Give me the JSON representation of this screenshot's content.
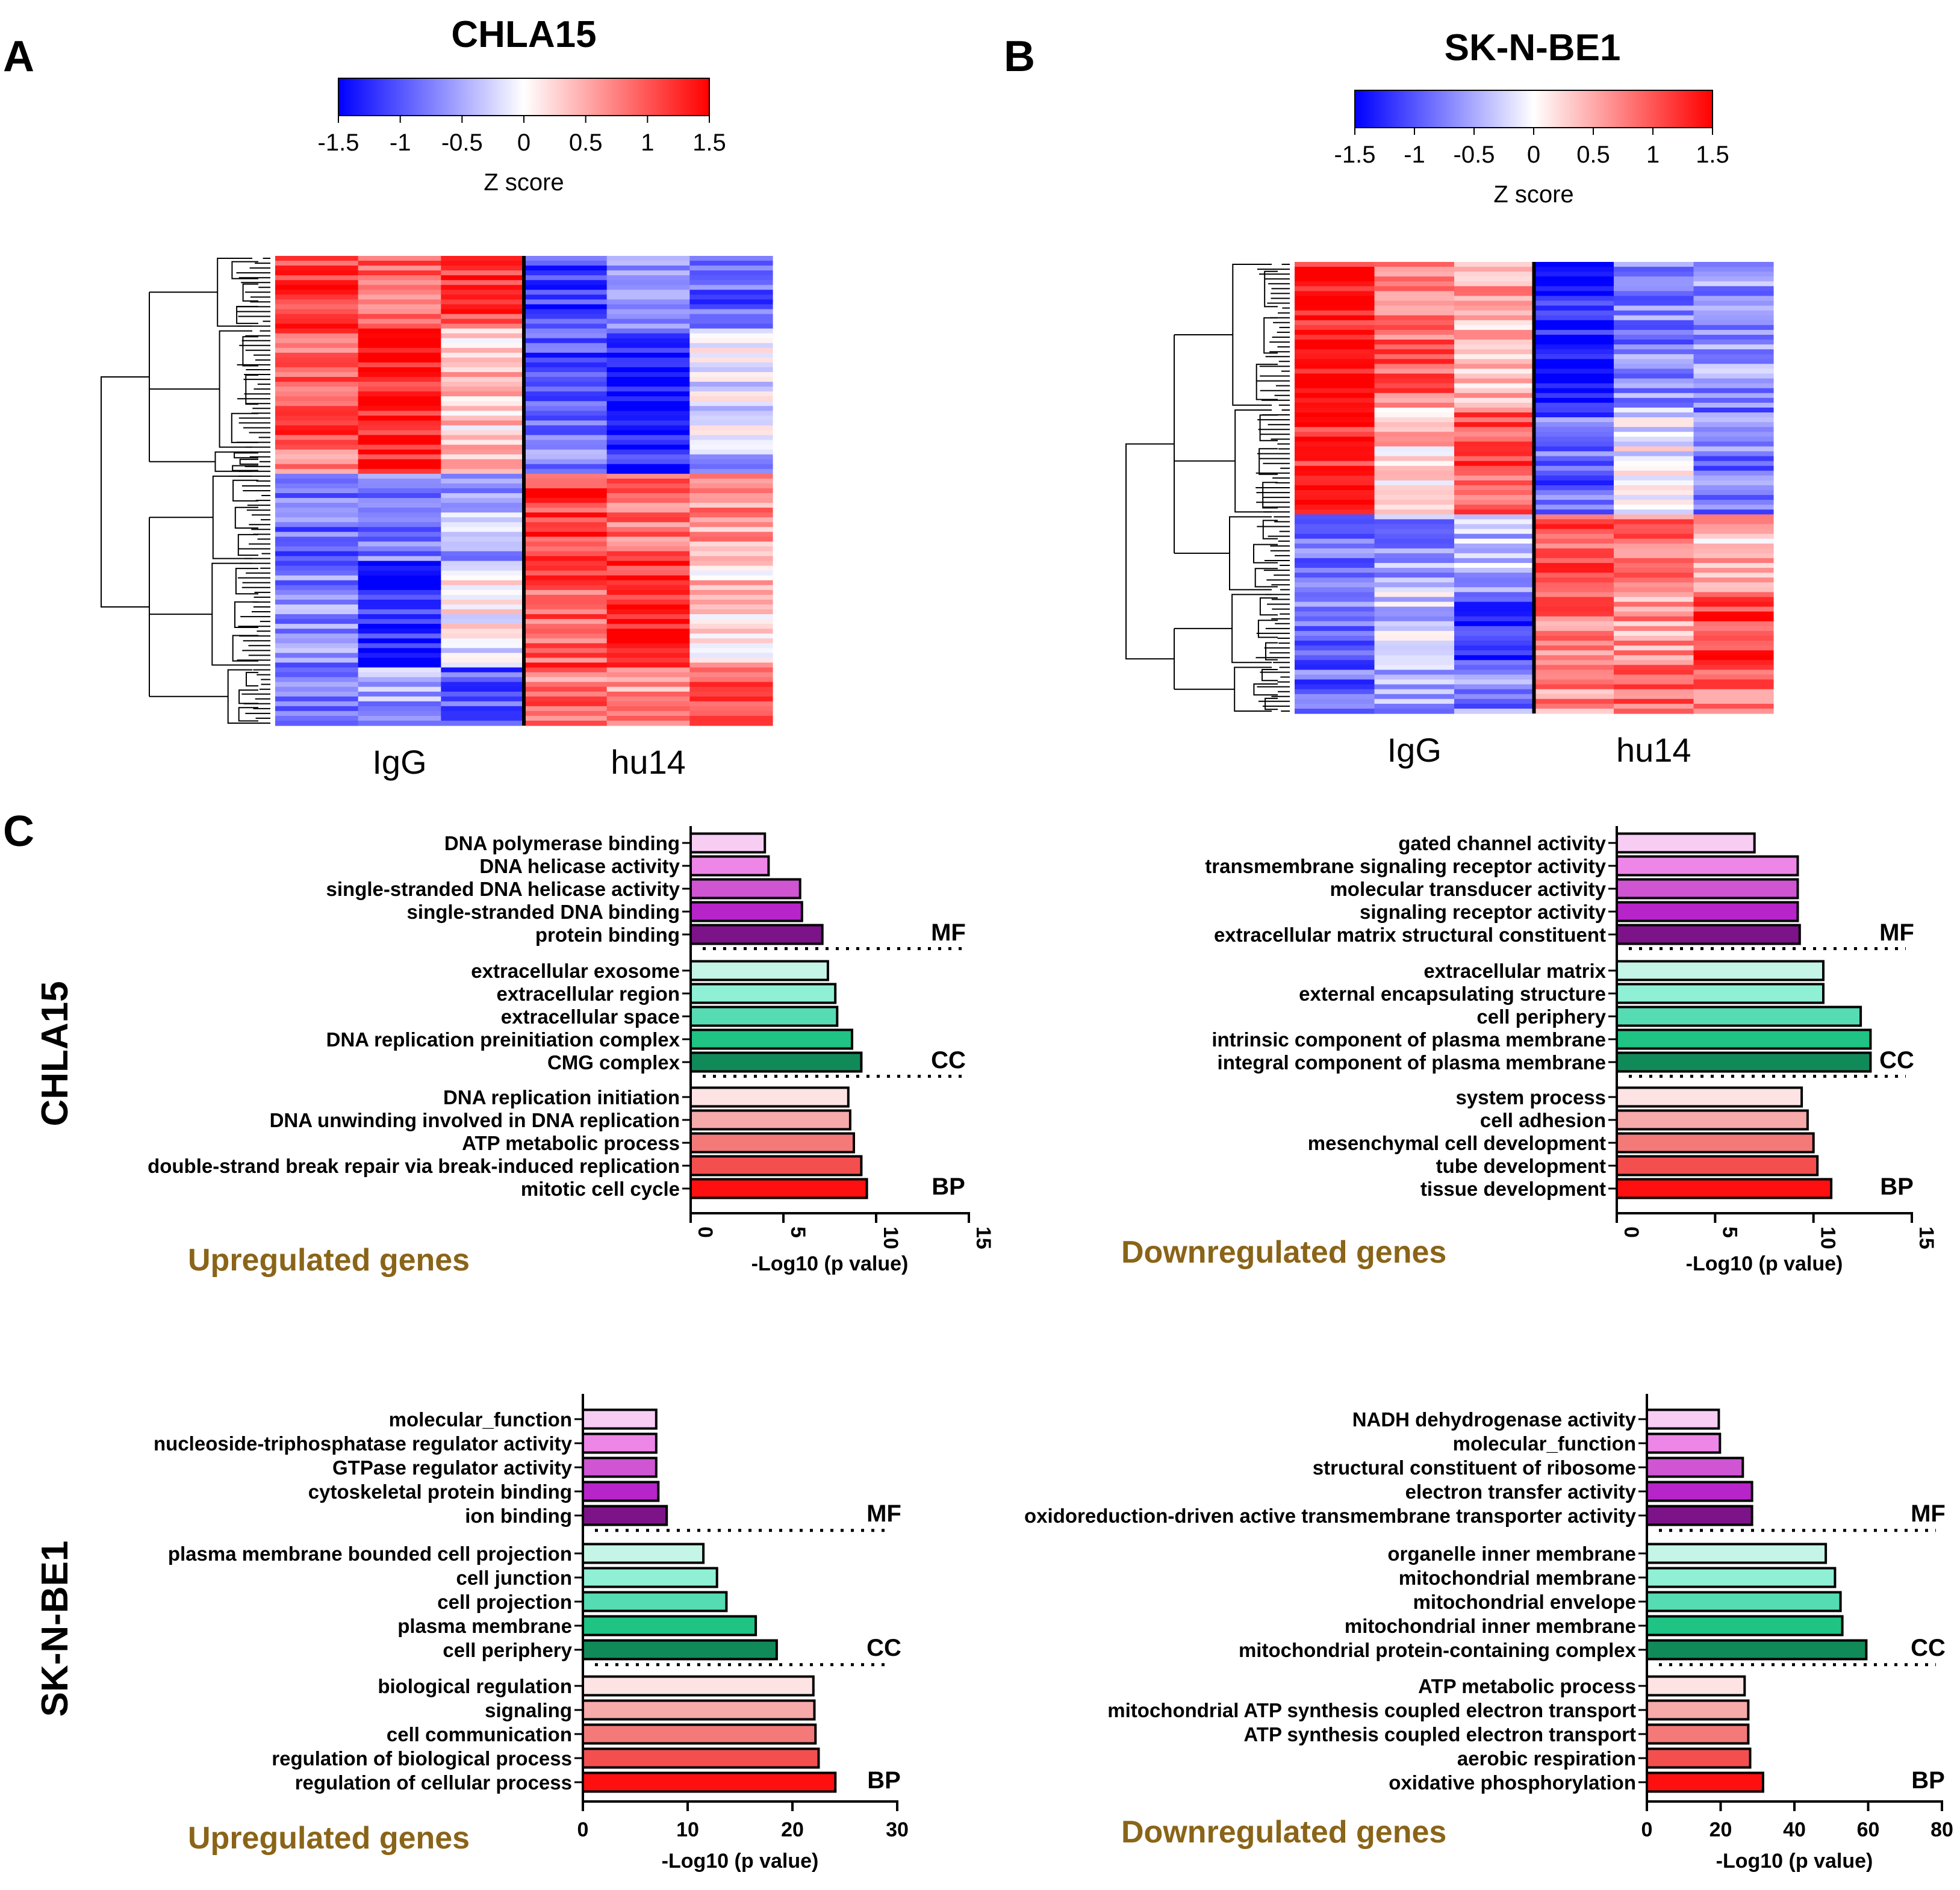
{
  "figure": {
    "panel_labels": {
      "a": "A",
      "b": "B",
      "c": "C"
    },
    "row_labels": [
      "CHLA15",
      "SK-N-BE1"
    ]
  },
  "colors": {
    "low": "#0000ff",
    "mid": "#ffffff",
    "high": "#ff0000",
    "caption": "#8a6418",
    "MF": [
      "#f8cdf3",
      "#ee86e8",
      "#cf55d2",
      "#b724c9",
      "#7d1388"
    ],
    "CC": [
      "#c4f5e6",
      "#8ff0d5",
      "#55dcb3",
      "#1fc384",
      "#118a59"
    ],
    "BP": [
      "#fde3e3",
      "#f6aaaa",
      "#f47a7a",
      "#f44f4f",
      "#ff1010"
    ]
  },
  "chart_data": [
    {
      "type": "heatmap",
      "title": "CHLA15",
      "colorbar": {
        "label": "Z score",
        "ticks": [
          "-1.5",
          "-1",
          "-0.5",
          "0",
          "0.5",
          "1",
          "1.5"
        ],
        "range": [
          -1.5,
          1.5
        ]
      },
      "groups": [
        "IgG",
        "hu14"
      ],
      "columns_per_group": 3,
      "blocks": [
        {
          "rows": 15,
          "pattern": [
            1.1,
            0.9,
            1.2,
            -1.2,
            -0.6,
            -0.9
          ]
        },
        {
          "rows": 25,
          "pattern": [
            1.0,
            1.4,
            0.3,
            -1.0,
            -1.3,
            -0.2
          ]
        },
        {
          "rows": 5,
          "pattern": [
            0.7,
            1.3,
            0.4,
            -0.8,
            -1.2,
            -0.5
          ]
        },
        {
          "rows": 18,
          "pattern": [
            -0.9,
            -0.8,
            -0.5,
            1.2,
            0.9,
            0.6
          ]
        },
        {
          "rows": 22,
          "pattern": [
            -0.7,
            -1.3,
            0.0,
            1.0,
            1.3,
            0.3
          ]
        },
        {
          "rows": 12,
          "pattern": [
            -0.8,
            -0.5,
            -1.0,
            0.8,
            0.6,
            1.0
          ]
        }
      ]
    },
    {
      "type": "heatmap",
      "title": "SK-N-BE1",
      "colorbar": {
        "label": "Z score",
        "ticks": [
          "-1.5",
          "-1",
          "-0.5",
          "0",
          "0.5",
          "1",
          "1.5"
        ],
        "range": [
          -1.5,
          1.5
        ]
      },
      "groups": [
        "IgG",
        "hu14"
      ],
      "columns_per_group": 3,
      "blocks": [
        {
          "rows": 30,
          "pattern": [
            1.4,
            0.9,
            0.5,
            -1.3,
            -0.7,
            -0.6
          ]
        },
        {
          "rows": 22,
          "pattern": [
            1.3,
            0.3,
            1.0,
            -0.9,
            -0.1,
            -0.8
          ]
        },
        {
          "rows": 16,
          "pattern": [
            -0.9,
            -0.6,
            -0.4,
            1.0,
            0.9,
            0.4
          ]
        },
        {
          "rows": 15,
          "pattern": [
            -0.8,
            -0.3,
            -1.2,
            0.8,
            0.6,
            1.2
          ]
        },
        {
          "rows": 10,
          "pattern": [
            -0.9,
            -0.5,
            -0.7,
            0.7,
            1.0,
            0.9
          ]
        }
      ]
    },
    {
      "type": "bar",
      "orientation": "horizontal",
      "cell_line": "CHLA15",
      "caption": "Upregulated genes",
      "xlabel": "-Log10 (p value)",
      "xlim": [
        0,
        15
      ],
      "xticks": [
        "0",
        "5",
        "10",
        "15"
      ],
      "tick_rotated": true,
      "groups": [
        {
          "name": "MF",
          "terms": [
            "DNA polymerase binding",
            "DNA helicase activity",
            "single-stranded DNA helicase activity",
            "single-stranded DNA binding",
            "protein binding"
          ],
          "values": [
            4.0,
            4.2,
            5.9,
            6.0,
            7.1
          ]
        },
        {
          "name": "CC",
          "terms": [
            "extracellular exosome",
            "extracellular region",
            "extracellular space",
            "DNA replication preinitiation complex",
            "CMG complex"
          ],
          "values": [
            7.4,
            7.8,
            7.9,
            8.7,
            9.2
          ]
        },
        {
          "name": "BP",
          "terms": [
            "DNA replication initiation",
            "DNA unwinding involved in DNA replication",
            "ATP metabolic process",
            "double-strand break repair via break-induced replication",
            "mitotic cell cycle"
          ],
          "values": [
            8.5,
            8.6,
            8.8,
            9.2,
            9.5
          ]
        }
      ]
    },
    {
      "type": "bar",
      "orientation": "horizontal",
      "cell_line": "CHLA15",
      "caption": "Downregulated genes",
      "xlabel": "-Log10 (p value)",
      "xlim": [
        0,
        15
      ],
      "xticks": [
        "0",
        "5",
        "10",
        "15"
      ],
      "tick_rotated": true,
      "groups": [
        {
          "name": "MF",
          "terms": [
            "gated channel activity",
            "transmembrane signaling receptor activity",
            "molecular transducer activity",
            "signaling receptor activity",
            "extracellular matrix structural constituent"
          ],
          "values": [
            7.0,
            9.2,
            9.2,
            9.2,
            9.3
          ]
        },
        {
          "name": "CC",
          "terms": [
            "extracellular matrix",
            "external encapsulating structure",
            "cell periphery",
            "intrinsic component of plasma membrane",
            "integral component of plasma membrane"
          ],
          "values": [
            10.5,
            10.5,
            12.4,
            12.9,
            12.9
          ]
        },
        {
          "name": "BP",
          "terms": [
            "system process",
            "cell adhesion",
            "mesenchymal cell development",
            "tube development",
            "tissue development"
          ],
          "values": [
            9.4,
            9.7,
            10.0,
            10.2,
            10.9
          ]
        }
      ]
    },
    {
      "type": "bar",
      "orientation": "horizontal",
      "cell_line": "SK-N-BE1",
      "caption": "Upregulated genes",
      "xlabel": "-Log10 (p value)",
      "xlim": [
        0,
        30
      ],
      "xticks": [
        "0",
        "10",
        "20",
        "30"
      ],
      "tick_rotated": false,
      "groups": [
        {
          "name": "MF",
          "terms": [
            "molecular_function",
            "nucleoside-triphosphatase regulator activity",
            "GTPase regulator activity",
            "cytoskeletal protein binding",
            "ion binding"
          ],
          "values": [
            7.0,
            7.0,
            7.0,
            7.2,
            8.0
          ]
        },
        {
          "name": "CC",
          "terms": [
            "plasma membrane bounded cell projection",
            "cell junction",
            "cell projection",
            "plasma membrane",
            "cell periphery"
          ],
          "values": [
            11.5,
            12.8,
            13.7,
            16.5,
            18.5
          ]
        },
        {
          "name": "BP",
          "terms": [
            "biological regulation",
            "signaling",
            "cell communication",
            "regulation of biological process",
            "regulation of cellular process"
          ],
          "values": [
            22.0,
            22.1,
            22.2,
            22.5,
            24.1
          ]
        }
      ]
    },
    {
      "type": "bar",
      "orientation": "horizontal",
      "cell_line": "SK-N-BE1",
      "caption": "Downregulated genes",
      "xlabel": "-Log10 (p value)",
      "xlim": [
        0,
        80
      ],
      "xticks": [
        "0",
        "20",
        "40",
        "60",
        "80"
      ],
      "tick_rotated": false,
      "groups": [
        {
          "name": "MF",
          "terms": [
            "NADH dehydrogenase activity",
            "molecular_function",
            "structural constituent of ribosome",
            "electron transfer activity",
            "oxidoreduction-driven active transmembrane transporter activity"
          ],
          "values": [
            19.5,
            19.8,
            26.0,
            28.5,
            28.5
          ]
        },
        {
          "name": "CC",
          "terms": [
            "organelle inner membrane",
            "mitochondrial membrane",
            "mitochondrial envelope",
            "mitochondrial inner membrane",
            "mitochondrial protein-containing complex"
          ],
          "values": [
            48.5,
            51.0,
            52.5,
            53.0,
            59.5
          ]
        },
        {
          "name": "BP",
          "terms": [
            "ATP metabolic process",
            "mitochondrial ATP synthesis coupled electron transport",
            "ATP synthesis coupled electron transport",
            "aerobic respiration",
            "oxidative phosphorylation"
          ],
          "values": [
            26.5,
            27.5,
            27.5,
            28.0,
            31.5
          ]
        }
      ]
    }
  ]
}
